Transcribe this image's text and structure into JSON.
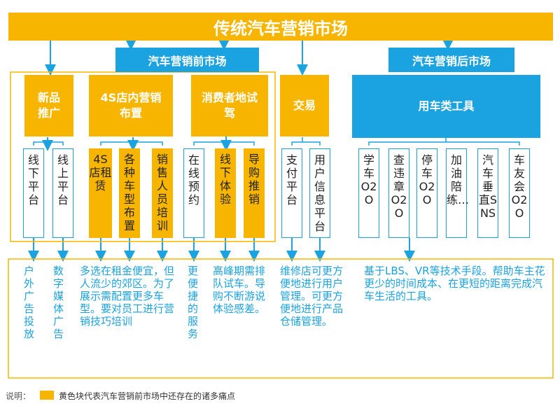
{
  "title": "传统汽车营销市场",
  "sections": [
    "汽车营销前市场",
    "汽车营销后市场"
  ],
  "categories": [
    {
      "label": "新品推广",
      "items": [
        "线下平台",
        "线上平台"
      ]
    },
    {
      "label": "4S店内营销布置",
      "items": [
        "4S店租赁",
        "各种车型布置",
        "销售人员培训"
      ]
    },
    {
      "label": "消费者地试驾",
      "items": [
        "在线预约",
        "线下体验",
        "导购推销"
      ]
    },
    {
      "label": "交易",
      "items": [
        "支付平台",
        "用户信息平台"
      ]
    },
    {
      "label": "用车类工具",
      "items": [
        "学车O2O",
        "查违章O2O",
        "停车O2O",
        "加油陪练…",
        "汽车垂直SNS",
        "车友会O2O"
      ]
    }
  ],
  "descriptions": [
    "户外广告投放",
    "数字媒体广告",
    "多选在租金便宜，但人流少的郊区。为了展示需配置更多车型。要对员工进行营销技巧培训",
    "更便捷的服务",
    "高峰期需排队试车。导购不断游说体验感差。",
    "维修店可更方便地进行用户管理。可更方便地进行产品仓储管理。",
    "基于LBS、VR等技术手段。帮助车主花更少的时间成本、在更短的距离完成汽车生活的工具。"
  ],
  "note": {
    "label": "说明：",
    "text": "黄色块代表汽车营销前市场中还存在的诸多痛点"
  }
}
